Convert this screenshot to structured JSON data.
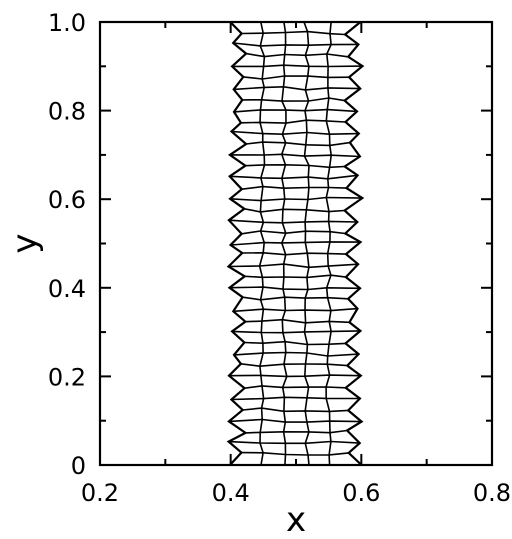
{
  "chart_data": {
    "type": "line",
    "title": "",
    "xlabel": "x",
    "ylabel": "y",
    "xlim": [
      0.2,
      0.8
    ],
    "ylim": [
      0.0,
      1.0
    ],
    "x_ticks": [
      0.2,
      0.4,
      0.6,
      0.8
    ],
    "x_tick_labels": [
      "0.2",
      "0.4",
      "0.6",
      "0.8"
    ],
    "y_ticks": [
      0.0,
      0.2,
      0.4,
      0.6,
      0.8,
      1.0
    ],
    "y_tick_labels": [
      "0",
      "0.2",
      "0.4",
      "0.6",
      "0.8",
      "1.0"
    ],
    "x_minor_ticks": [
      0.3,
      0.5,
      0.7
    ],
    "y_minor_ticks": [
      0.1,
      0.3,
      0.5,
      0.7,
      0.9
    ],
    "grid": false,
    "legend": "none",
    "series": [
      {
        "kind": "mesh",
        "columns": [
          {
            "x_mean": 0.41,
            "amplitude": 0.012
          },
          {
            "x_mean": 0.448,
            "amplitude": 0.004
          },
          {
            "x_mean": 0.482,
            "amplitude": 0.004
          },
          {
            "x_mean": 0.516,
            "amplitude": 0.004
          },
          {
            "x_mean": 0.55,
            "amplitude": 0.004
          },
          {
            "x_mean": 0.588,
            "amplitude": 0.013
          }
        ],
        "rows": 40,
        "y_range": [
          0.0,
          1.0
        ],
        "color": "#000000"
      }
    ]
  }
}
